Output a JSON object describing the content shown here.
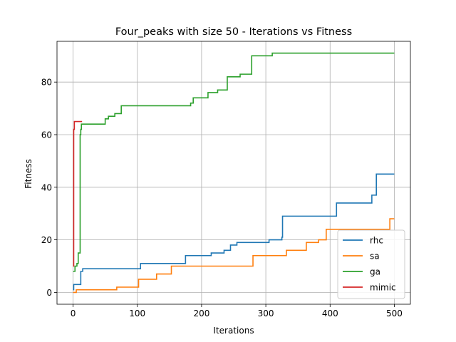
{
  "chart_data": {
    "type": "line",
    "title": "Four_peaks with size 50 - Iterations vs Fitness",
    "xlabel": "Iterations",
    "ylabel": "Fitness",
    "xlim": [
      -25,
      525
    ],
    "ylim": [
      -4.5,
      95.5
    ],
    "xticks": [
      0,
      100,
      200,
      300,
      400,
      500
    ],
    "yticks": [
      0,
      20,
      40,
      60,
      80
    ],
    "grid": true,
    "legend_position": "lower-right",
    "series": [
      {
        "name": "rhc",
        "color": "#1f77b4",
        "steps": [
          [
            0,
            1
          ],
          [
            1,
            3
          ],
          [
            12,
            8
          ],
          [
            15,
            9
          ],
          [
            105,
            11
          ],
          [
            175,
            14
          ],
          [
            215,
            15
          ],
          [
            235,
            16
          ],
          [
            245,
            18
          ],
          [
            255,
            19
          ],
          [
            305,
            20
          ],
          [
            325,
            21
          ],
          [
            326,
            29
          ],
          [
            410,
            34
          ],
          [
            465,
            37
          ],
          [
            472,
            45
          ],
          [
            500,
            45
          ]
        ]
      },
      {
        "name": "sa",
        "color": "#ff7f0e",
        "steps": [
          [
            0,
            0
          ],
          [
            5,
            1
          ],
          [
            68,
            2
          ],
          [
            102,
            5
          ],
          [
            130,
            7
          ],
          [
            153,
            10
          ],
          [
            280,
            14
          ],
          [
            332,
            16
          ],
          [
            363,
            19
          ],
          [
            382,
            20
          ],
          [
            394,
            24
          ],
          [
            493,
            28
          ],
          [
            500,
            28
          ]
        ]
      },
      {
        "name": "ga",
        "color": "#2ca02c",
        "steps": [
          [
            0,
            8
          ],
          [
            3,
            10
          ],
          [
            6,
            11
          ],
          [
            8,
            15
          ],
          [
            11,
            60
          ],
          [
            12,
            62
          ],
          [
            13,
            64
          ],
          [
            50,
            66
          ],
          [
            55,
            67
          ],
          [
            65,
            68
          ],
          [
            75,
            71
          ],
          [
            183,
            72
          ],
          [
            187,
            74
          ],
          [
            210,
            76
          ],
          [
            225,
            77
          ],
          [
            240,
            82
          ],
          [
            260,
            83
          ],
          [
            278,
            90
          ],
          [
            310,
            91
          ],
          [
            500,
            91
          ]
        ]
      },
      {
        "name": "mimic",
        "color": "#d62728",
        "steps": [
          [
            0,
            10
          ],
          [
            1,
            62
          ],
          [
            2,
            65
          ],
          [
            14,
            65
          ]
        ]
      }
    ]
  }
}
